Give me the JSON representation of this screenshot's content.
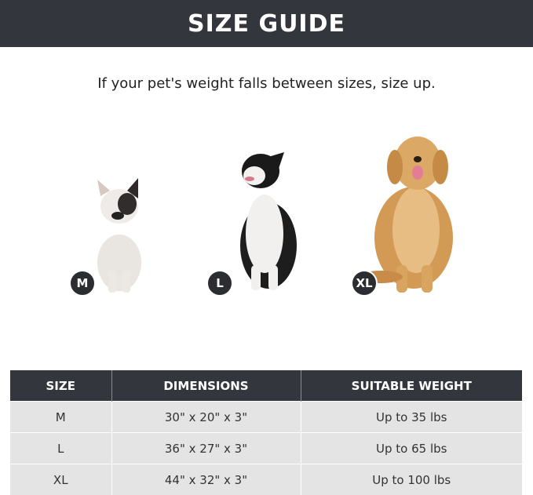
{
  "header": {
    "title": "SIZE GUIDE"
  },
  "subtitle": "If your pet's weight falls between sizes, size up.",
  "dogs": [
    {
      "size": "M",
      "breed_icon": "french-bulldog"
    },
    {
      "size": "L",
      "breed_icon": "border-collie"
    },
    {
      "size": "XL",
      "breed_icon": "golden-retriever"
    }
  ],
  "table": {
    "headers": [
      "SIZE",
      "DIMENSIONS",
      "SUITABLE WEIGHT"
    ],
    "rows": [
      [
        "M",
        "30\" x 20\" x 3\"",
        "Up to 35 lbs"
      ],
      [
        "L",
        "36\" x 27\" x 3\"",
        "Up to 65 lbs"
      ],
      [
        "XL",
        "44\" x 32\" x 3\"",
        "Up to 100 lbs"
      ]
    ]
  },
  "colors": {
    "banner": "#33363d",
    "row": "#e4e4e4",
    "badge": "#2b2d31"
  }
}
